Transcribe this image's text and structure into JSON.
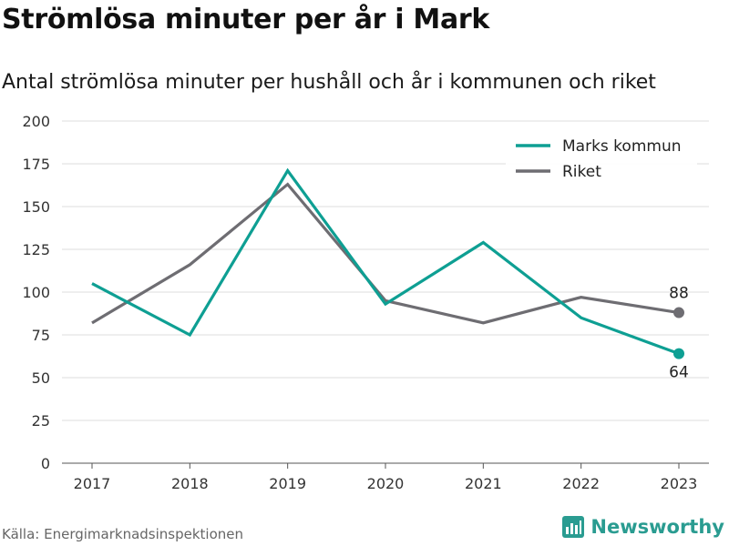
{
  "header": {
    "title": "Strömlösa minuter per år i Mark",
    "subtitle": "Antal strömlösa minuter per hushåll och år i kommunen och riket"
  },
  "footer": {
    "source": "Källa: Energimarknadsinspektionen",
    "brand": "Newsworthy"
  },
  "colors": {
    "kommun": "#0e9f93",
    "riket": "#6e6d72",
    "grid": "#dddddd",
    "brand": "#2a9c91"
  },
  "chart_data": {
    "type": "line",
    "x": [
      "2017",
      "2018",
      "2019",
      "2020",
      "2021",
      "2022",
      "2023"
    ],
    "series": [
      {
        "name": "Marks kommun",
        "values": [
          105,
          75,
          171,
          93,
          129,
          85,
          64
        ]
      },
      {
        "name": "Riket",
        "values": [
          82,
          116,
          163,
          95,
          82,
          97,
          88
        ]
      }
    ],
    "yticks": [
      "0",
      "25",
      "50",
      "75",
      "100",
      "125",
      "150",
      "175",
      "200"
    ],
    "ylim": [
      0,
      200
    ],
    "grid": true,
    "legend_position": "top-right",
    "end_labels": [
      "64",
      "88"
    ]
  }
}
